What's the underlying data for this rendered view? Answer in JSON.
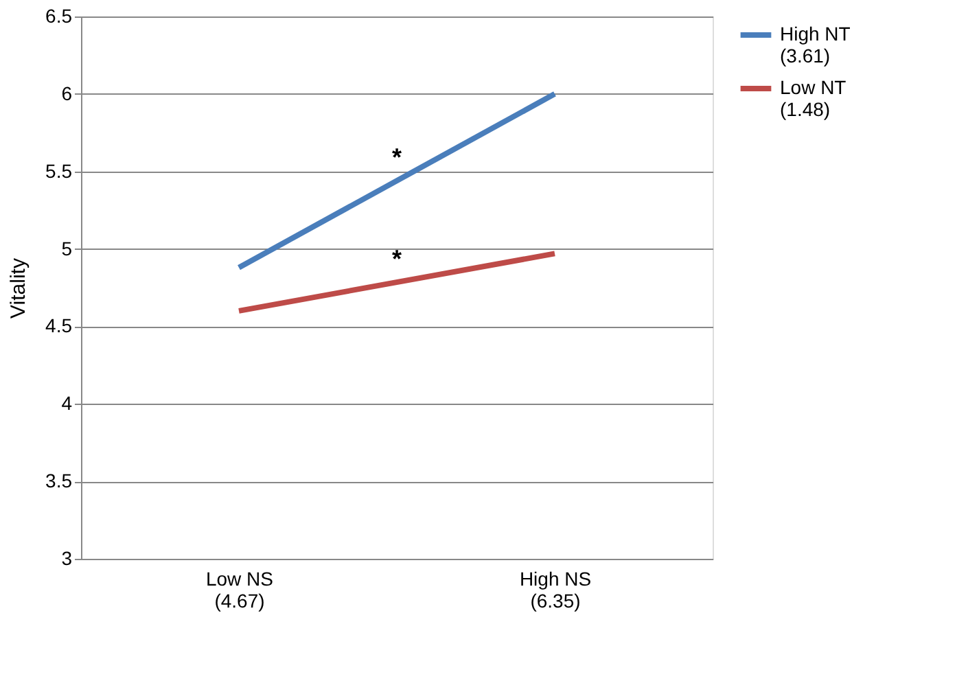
{
  "chart_data": {
    "type": "line",
    "ylabel": "Vitality",
    "categories": [
      "Low NS\n(4.67)",
      "High NS\n(6.35)"
    ],
    "series": [
      {
        "name": "High NT\n(3.61)",
        "color": "#4a7ebb",
        "values": [
          4.88,
          6.0
        ]
      },
      {
        "name": "Low NT\n(1.48)",
        "color": "#be4b48",
        "values": [
          4.6,
          4.97
        ]
      }
    ],
    "ylim": [
      3,
      6.5
    ],
    "yticks": [
      3,
      3.5,
      4,
      4.5,
      5,
      5.5,
      6,
      6.5
    ],
    "grid": "y",
    "legend": "right",
    "marker": "none",
    "line_style": "solid",
    "annotations": [
      "*",
      "*"
    ]
  }
}
